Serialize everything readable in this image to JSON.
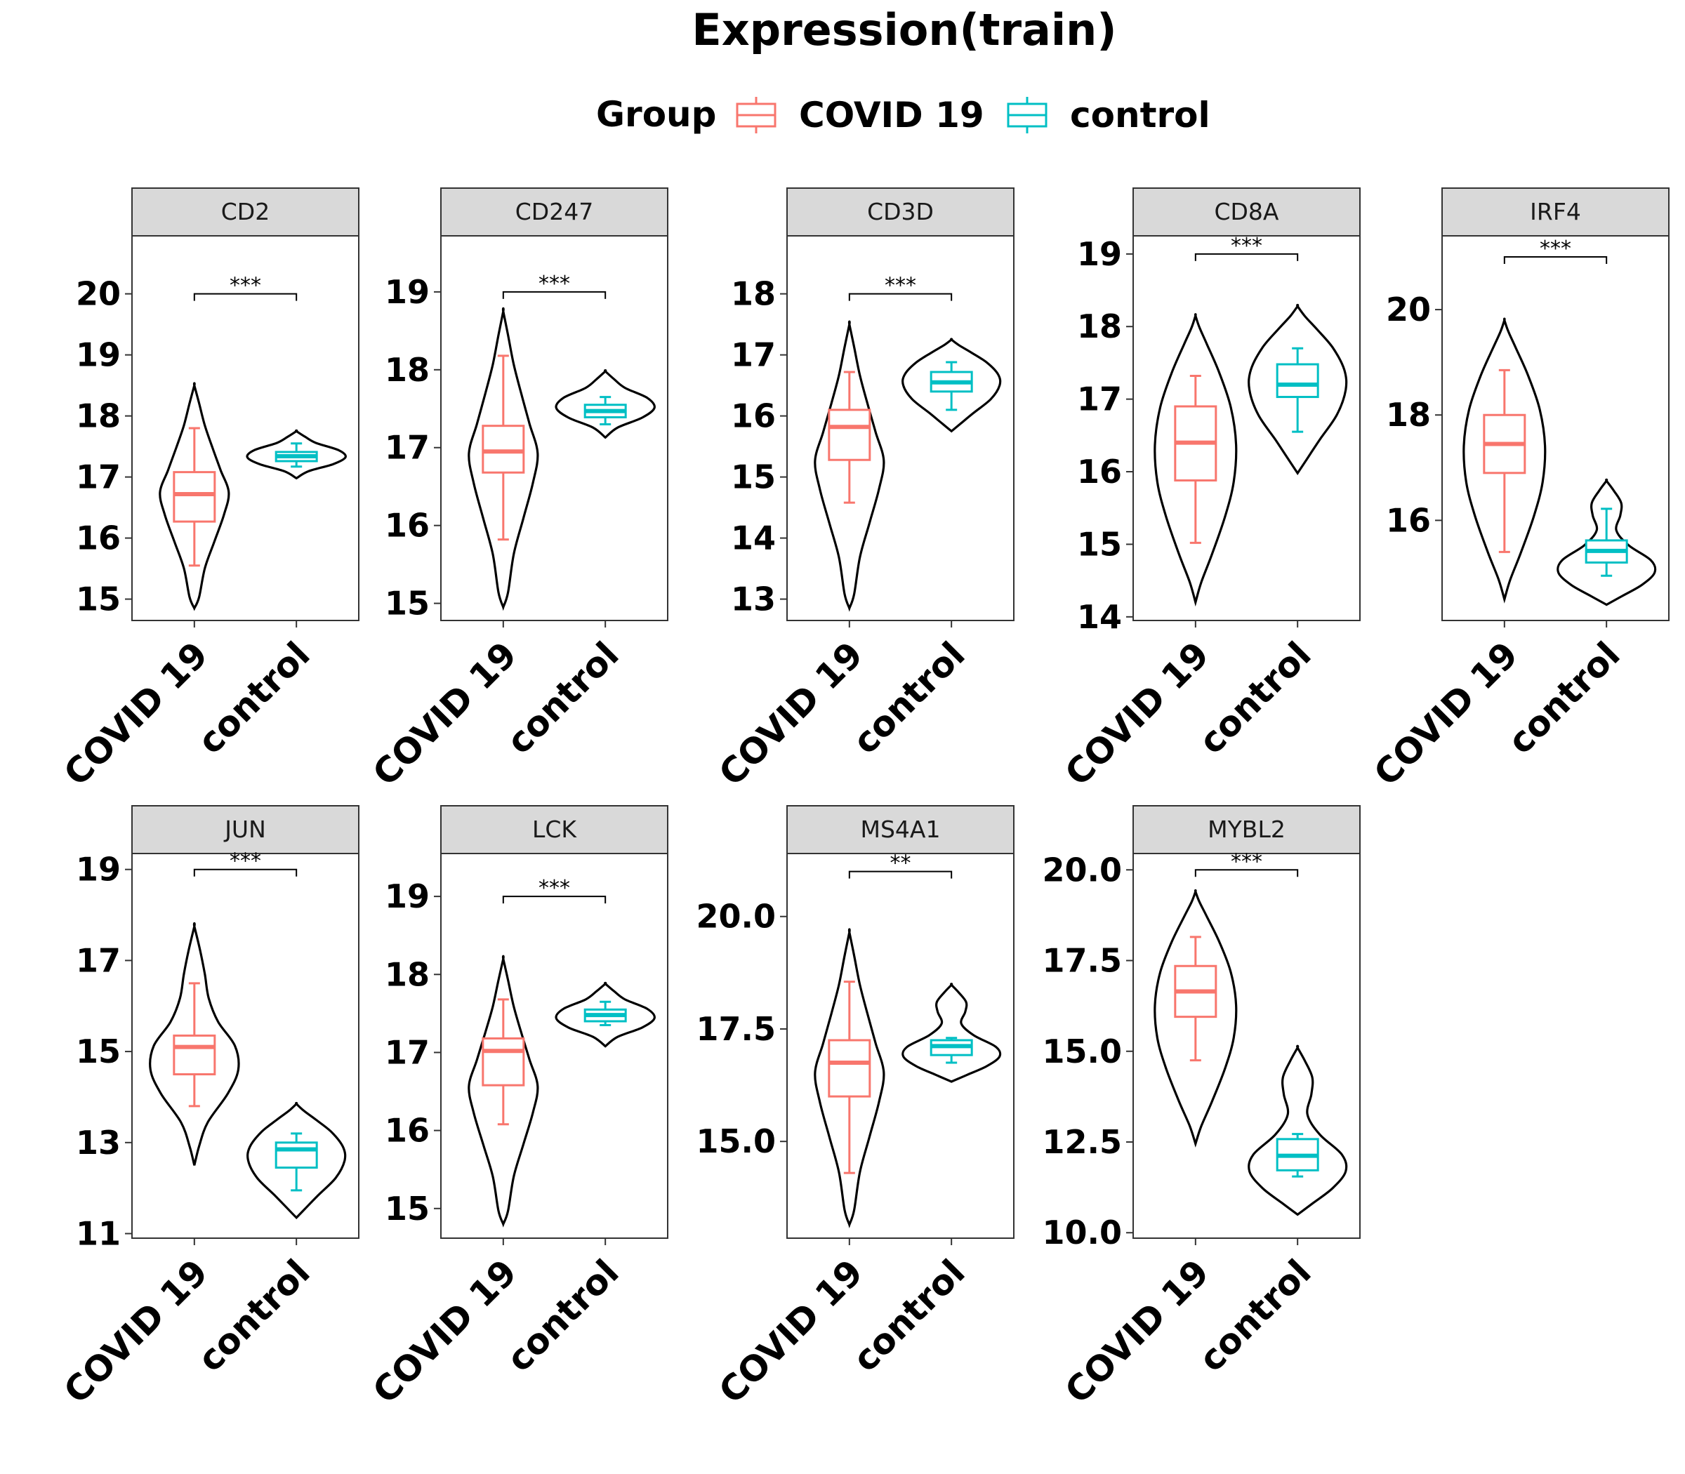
{
  "chart_data": {
    "type": "violin-box",
    "title": "Expression(train)",
    "legend": {
      "title": "Group",
      "position": "top",
      "entries": [
        {
          "name": "COVID 19",
          "color": "#F8766D"
        },
        {
          "name": "control",
          "color": "#00BFC4"
        }
      ]
    },
    "categories": [
      "COVID 19",
      "control"
    ],
    "panels": [
      {
        "gene": "CD2",
        "sig": "***",
        "yticks": [
          "15",
          "16",
          "17",
          "18",
          "19",
          "20"
        ],
        "ylim": [
          14.65,
          20.95
        ],
        "bracket_y": 20,
        "groups": [
          {
            "violin": [
              14.85,
              18.5
            ],
            "violin_shape": "tall-narrow",
            "box": {
              "min": 15.55,
              "q1": 16.27,
              "median": 16.72,
              "q3": 17.08,
              "max": 17.8
            }
          },
          {
            "violin": [
              16.98,
              17.75
            ],
            "violin_shape": "flat-wide",
            "box": {
              "min": 17.17,
              "q1": 17.26,
              "median": 17.34,
              "q3": 17.41,
              "max": 17.55
            }
          }
        ]
      },
      {
        "gene": "CD247",
        "sig": "***",
        "yticks": [
          "15",
          "16",
          "17",
          "18",
          "19"
        ],
        "ylim": [
          14.78,
          19.72
        ],
        "bracket_y": 19,
        "groups": [
          {
            "violin": [
              14.95,
              18.75
            ],
            "violin_shape": "tall-narrow",
            "box": {
              "min": 15.82,
              "q1": 16.68,
              "median": 16.95,
              "q3": 17.28,
              "max": 18.18
            }
          },
          {
            "violin": [
              17.13,
              17.98
            ],
            "violin_shape": "flat-wide",
            "box": {
              "min": 17.3,
              "q1": 17.39,
              "median": 17.47,
              "q3": 17.55,
              "max": 17.65
            }
          }
        ]
      },
      {
        "gene": "CD3D",
        "sig": "***",
        "yticks": [
          "13",
          "14",
          "15",
          "16",
          "17",
          "18"
        ],
        "ylim": [
          12.65,
          18.95
        ],
        "bracket_y": 18,
        "groups": [
          {
            "violin": [
              12.85,
              17.5
            ],
            "violin_shape": "tall-narrow",
            "box": {
              "min": 14.58,
              "q1": 15.28,
              "median": 15.82,
              "q3": 16.1,
              "max": 16.72
            }
          },
          {
            "violin": [
              15.75,
              17.25
            ],
            "violin_shape": "wide",
            "box": {
              "min": 16.1,
              "q1": 16.4,
              "median": 16.55,
              "q3": 16.72,
              "max": 16.88
            }
          }
        ]
      },
      {
        "gene": "CD8A",
        "sig": "***",
        "yticks": [
          "14",
          "15",
          "16",
          "17",
          "18",
          "19"
        ],
        "ylim": [
          13.95,
          19.25
        ],
        "bracket_y": 19,
        "groups": [
          {
            "violin": [
              14.2,
              18.15
            ],
            "violin_shape": "medium",
            "box": {
              "min": 15.02,
              "q1": 15.88,
              "median": 16.4,
              "q3": 16.9,
              "max": 17.32
            }
          },
          {
            "violin": [
              15.98,
              18.28
            ],
            "violin_shape": "wide",
            "box": {
              "min": 16.55,
              "q1": 17.03,
              "median": 17.2,
              "q3": 17.48,
              "max": 17.7
            }
          }
        ]
      },
      {
        "gene": "IRF4",
        "sig": "***",
        "yticks": [
          "16",
          "18",
          "20"
        ],
        "ylim": [
          14.1,
          21.4
        ],
        "bracket_y": 21,
        "groups": [
          {
            "violin": [
              14.5,
              19.8
            ],
            "violin_shape": "medium",
            "box": {
              "min": 15.4,
              "q1": 16.9,
              "median": 17.45,
              "q3": 18.0,
              "max": 18.85
            }
          },
          {
            "violin": [
              14.4,
              16.75
            ],
            "violin_shape": "wide-bottom",
            "box": {
              "min": 14.95,
              "q1": 15.2,
              "median": 15.42,
              "q3": 15.62,
              "max": 16.22
            }
          }
        ]
      },
      {
        "gene": "JUN",
        "sig": "***",
        "yticks": [
          "11",
          "13",
          "15",
          "17",
          "19"
        ],
        "ylim": [
          10.9,
          19.35
        ],
        "bracket_y": 19,
        "groups": [
          {
            "violin": [
              12.5,
              17.75
            ],
            "violin_shape": "wide-middle",
            "box": {
              "min": 13.8,
              "q1": 14.5,
              "median": 15.1,
              "q3": 15.35,
              "max": 16.5
            }
          },
          {
            "violin": [
              11.35,
              13.85
            ],
            "violin_shape": "wide",
            "box": {
              "min": 11.95,
              "q1": 12.45,
              "median": 12.85,
              "q3": 13.0,
              "max": 13.2
            }
          }
        ]
      },
      {
        "gene": "LCK",
        "sig": "***",
        "yticks": [
          "15",
          "16",
          "17",
          "18",
          "19"
        ],
        "ylim": [
          14.62,
          19.55
        ],
        "bracket_y": 19,
        "groups": [
          {
            "violin": [
              14.8,
              18.2
            ],
            "violin_shape": "tall-narrow",
            "box": {
              "min": 16.08,
              "q1": 16.58,
              "median": 17.02,
              "q3": 17.18,
              "max": 17.68
            }
          },
          {
            "violin": [
              17.08,
              17.88
            ],
            "violin_shape": "flat-wide",
            "box": {
              "min": 17.35,
              "q1": 17.4,
              "median": 17.48,
              "q3": 17.55,
              "max": 17.65
            }
          }
        ]
      },
      {
        "gene": "MS4A1",
        "sig": "**",
        "yticks": [
          "15.0",
          "17.5",
          "20.0"
        ],
        "ylim": [
          12.85,
          21.4
        ],
        "bracket_y": 21,
        "groups": [
          {
            "violin": [
              13.15,
              19.65
            ],
            "violin_shape": "tall-narrow",
            "box": {
              "min": 14.3,
              "q1": 16.0,
              "median": 16.75,
              "q3": 17.25,
              "max": 18.55
            }
          },
          {
            "violin": [
              16.33,
              18.48
            ],
            "violin_shape": "wide-bottom",
            "box": {
              "min": 16.75,
              "q1": 16.92,
              "median": 17.12,
              "q3": 17.25,
              "max": 17.3
            }
          }
        ]
      },
      {
        "gene": "MYBL2",
        "sig": "***",
        "yticks": [
          "10.0",
          "12.5",
          "15.0",
          "17.5",
          "20.0"
        ],
        "ylim": [
          9.85,
          20.45
        ],
        "bracket_y": 20,
        "groups": [
          {
            "violin": [
              12.45,
              19.4
            ],
            "violin_shape": "medium",
            "box": {
              "min": 14.75,
              "q1": 15.95,
              "median": 16.65,
              "q3": 17.35,
              "max": 18.15
            }
          },
          {
            "violin": [
              10.5,
              15.1
            ],
            "violin_shape": "wide-bottom",
            "box": {
              "min": 11.55,
              "q1": 11.72,
              "median": 12.12,
              "q3": 12.58,
              "max": 12.72
            }
          }
        ]
      }
    ]
  }
}
